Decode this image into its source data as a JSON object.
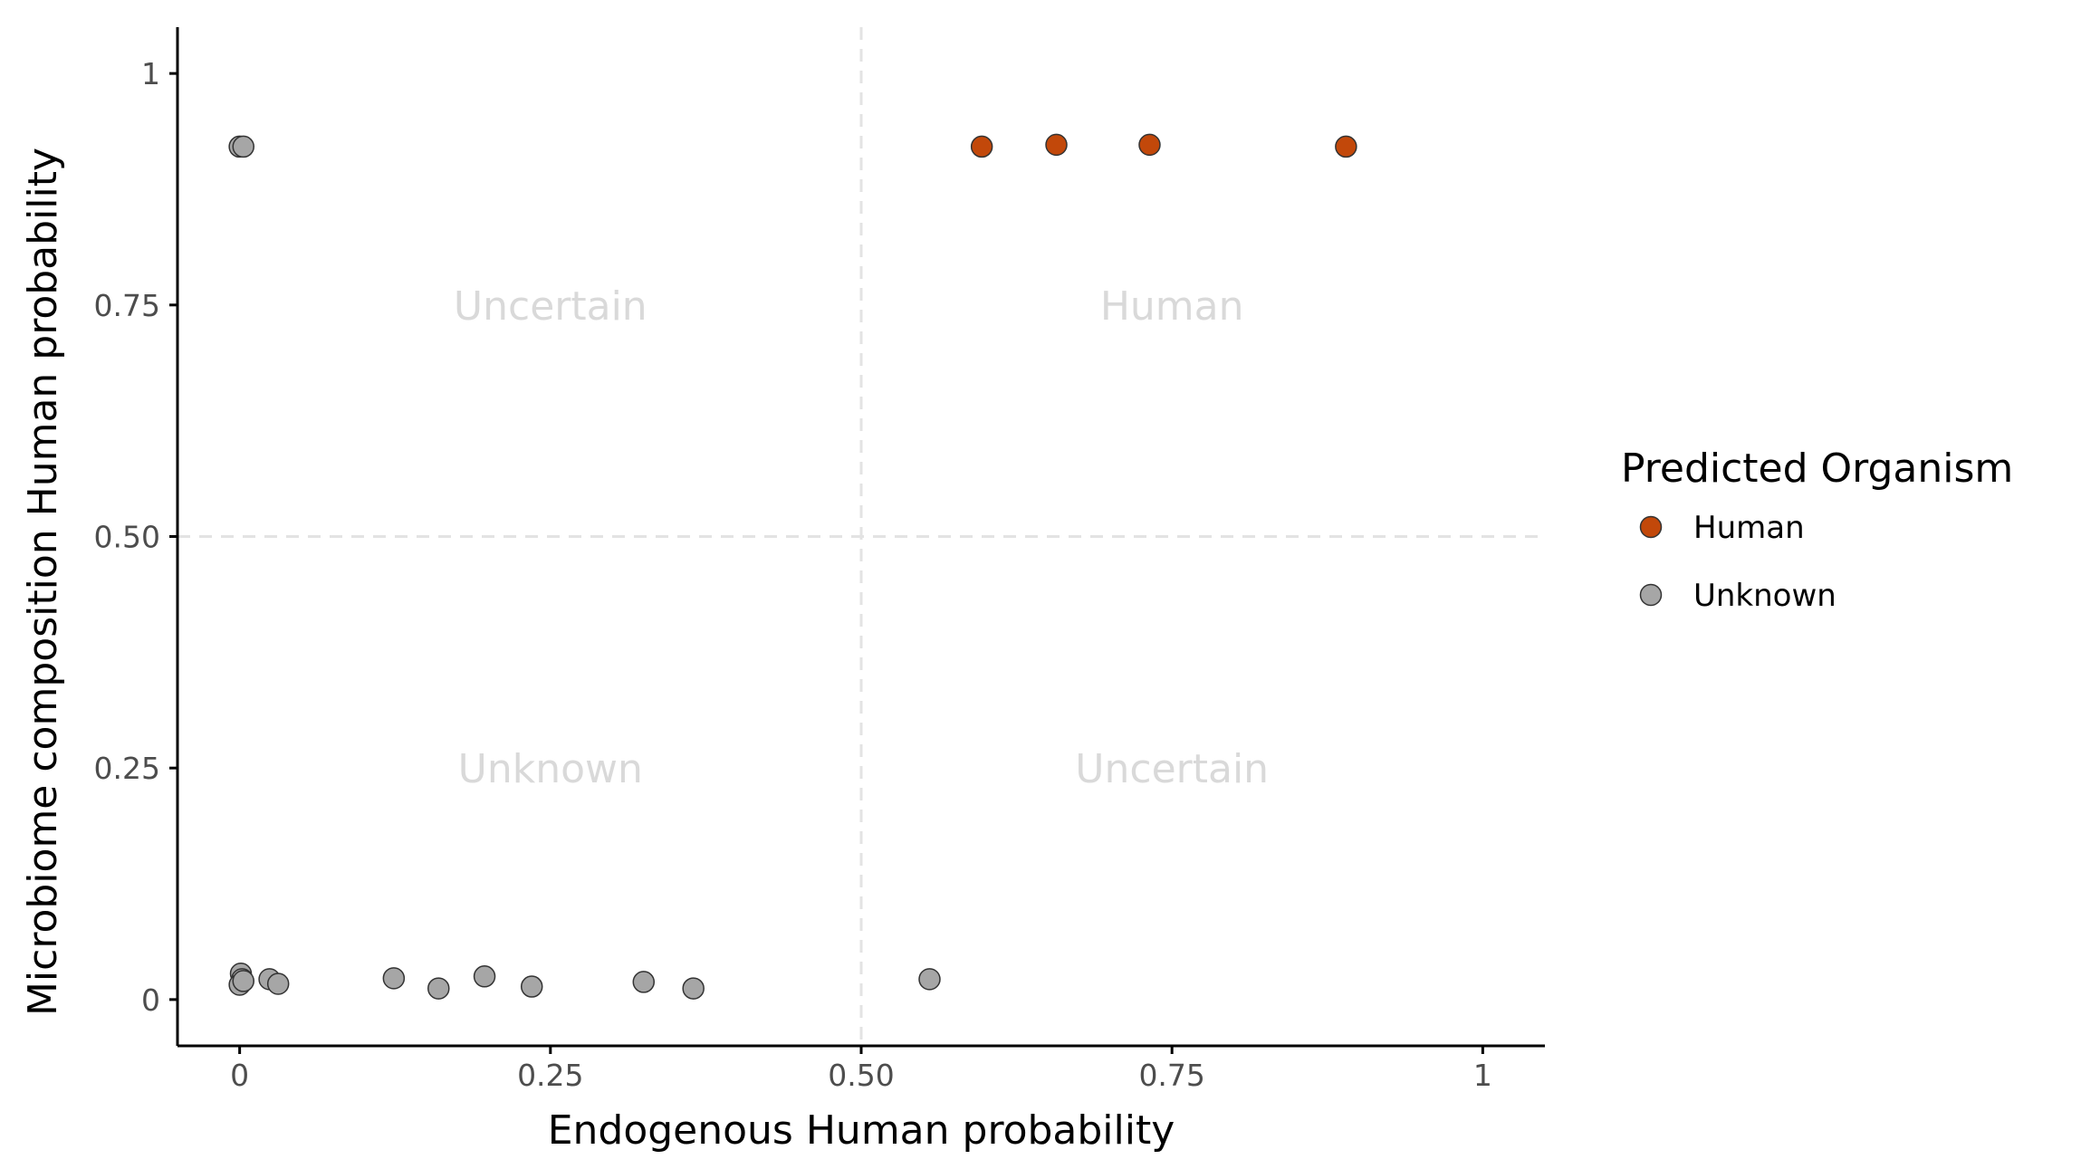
{
  "chart_data": {
    "type": "scatter",
    "xlabel": "Endogenous Human probability",
    "ylabel": "Microbiome composition Human probability",
    "xlim": [
      -0.05,
      1.05
    ],
    "ylim": [
      -0.05,
      1.05
    ],
    "x_ticks": [
      0,
      0.25,
      0.5,
      0.75,
      1
    ],
    "x_tick_labels": [
      "0",
      "0.25",
      "0.50",
      "0.75",
      "1"
    ],
    "y_ticks": [
      0,
      0.25,
      0.5,
      0.75,
      1
    ],
    "y_tick_labels": [
      "0",
      "0.25",
      "0.50",
      "0.75",
      "1"
    ],
    "grid": false,
    "reference_lines": {
      "x": 0.5,
      "y": 0.5,
      "style": "dashed",
      "color": "#e3e3e3"
    },
    "quadrant_labels": [
      {
        "text": "Uncertain",
        "x": 0.25,
        "y": 0.75
      },
      {
        "text": "Human",
        "x": 0.75,
        "y": 0.75
      },
      {
        "text": "Unknown",
        "x": 0.25,
        "y": 0.25
      },
      {
        "text": "Uncertain",
        "x": 0.75,
        "y": 0.25
      }
    ],
    "legend": {
      "title": "Predicted Organism",
      "position": "right"
    },
    "series": [
      {
        "name": "Human",
        "color": "#c2480a",
        "points": [
          {
            "x": 0.597,
            "y": 0.921
          },
          {
            "x": 0.657,
            "y": 0.923
          },
          {
            "x": 0.732,
            "y": 0.923
          },
          {
            "x": 0.89,
            "y": 0.921
          }
        ]
      },
      {
        "name": "Unknown",
        "color": "#a6a6a6",
        "points": [
          {
            "x": 0.0,
            "y": 0.921
          },
          {
            "x": 0.003,
            "y": 0.921
          },
          {
            "x": 0.001,
            "y": 0.028
          },
          {
            "x": 0.002,
            "y": 0.022
          },
          {
            "x": 0.0,
            "y": 0.016
          },
          {
            "x": 0.003,
            "y": 0.02
          },
          {
            "x": 0.024,
            "y": 0.022
          },
          {
            "x": 0.031,
            "y": 0.017
          },
          {
            "x": 0.124,
            "y": 0.023
          },
          {
            "x": 0.16,
            "y": 0.012
          },
          {
            "x": 0.197,
            "y": 0.025
          },
          {
            "x": 0.235,
            "y": 0.014
          },
          {
            "x": 0.325,
            "y": 0.019
          },
          {
            "x": 0.365,
            "y": 0.012
          },
          {
            "x": 0.555,
            "y": 0.022
          }
        ]
      }
    ]
  }
}
